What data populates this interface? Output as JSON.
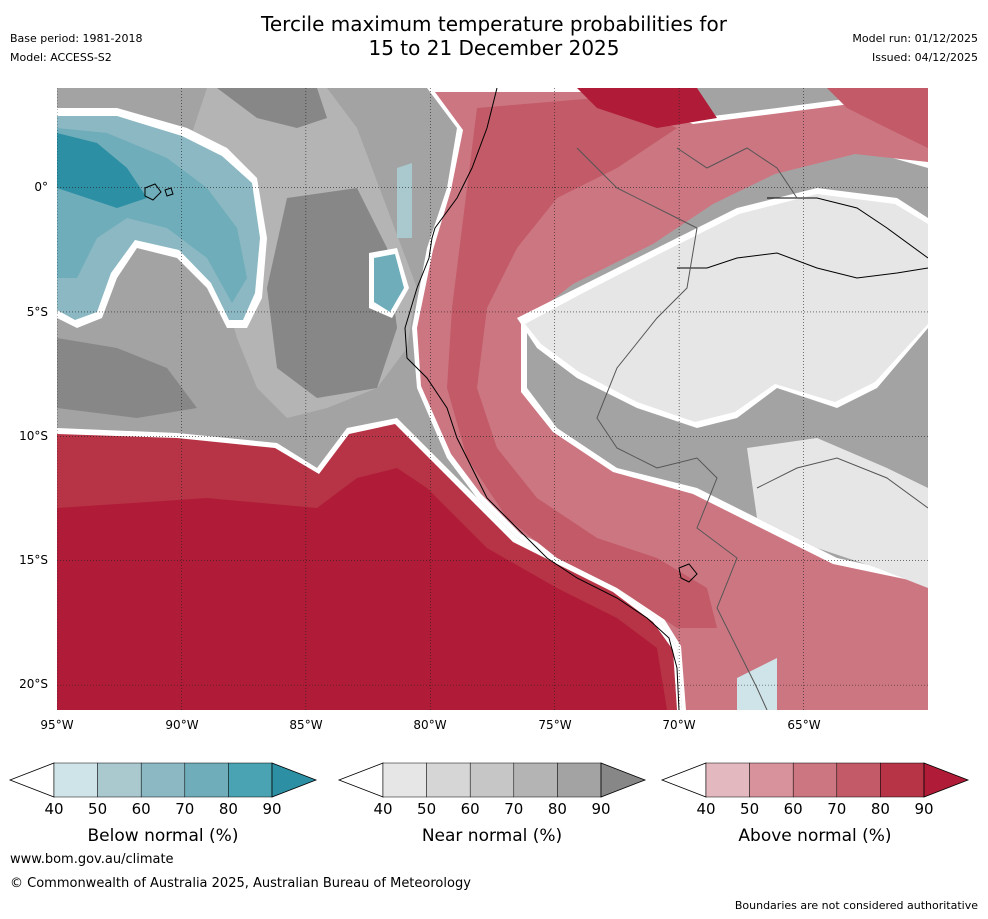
{
  "title": {
    "line1": "Tercile maximum temperature probabilities for",
    "line2": "15 to 21 December 2025"
  },
  "meta": {
    "base_period": "Base period: 1981-2018",
    "model": "Model: ACCESS-S2",
    "model_run": "Model run: 01/12/2025",
    "issued": "Issued: 04/12/2025"
  },
  "map": {
    "lat_labels": [
      "0°",
      "5°S",
      "10°S",
      "15°S",
      "20°S"
    ],
    "lon_labels": [
      "95°W",
      "90°W",
      "85°W",
      "80°W",
      "75°W",
      "70°W",
      "65°W"
    ],
    "lat_values": [
      0,
      -5,
      -10,
      -15,
      -20
    ],
    "lon_values": [
      -95,
      -90,
      -85,
      -80,
      -75,
      -70,
      -65
    ]
  },
  "colorbars": {
    "below": {
      "title": "Below normal (%)",
      "ticks": [
        "40",
        "50",
        "60",
        "70",
        "80",
        "90"
      ],
      "colors": [
        "#cfe4e8",
        "#a9c9cf",
        "#8bb8c2",
        "#6eadb9",
        "#4aa3b2",
        "#2d8fa3"
      ]
    },
    "near": {
      "title": "Near normal (%)",
      "ticks": [
        "40",
        "50",
        "60",
        "70",
        "80",
        "90"
      ],
      "colors": [
        "#e6e6e6",
        "#d6d6d6",
        "#c6c6c6",
        "#b4b4b4",
        "#a3a3a3",
        "#878787"
      ]
    },
    "above": {
      "title": "Above normal (%)",
      "ticks": [
        "40",
        "50",
        "60",
        "70",
        "80",
        "90"
      ],
      "colors": [
        "#e4b8bf",
        "#d8929c",
        "#cc7682",
        "#c25a67",
        "#b73446",
        "#b01c37"
      ]
    }
  },
  "footer": {
    "website": "www.bom.gov.au/climate",
    "copyright": "© Commonwealth of Australia 2025, Australian Bureau of Meteorology",
    "disclaimer": "Boundaries are not considered authoritative"
  }
}
